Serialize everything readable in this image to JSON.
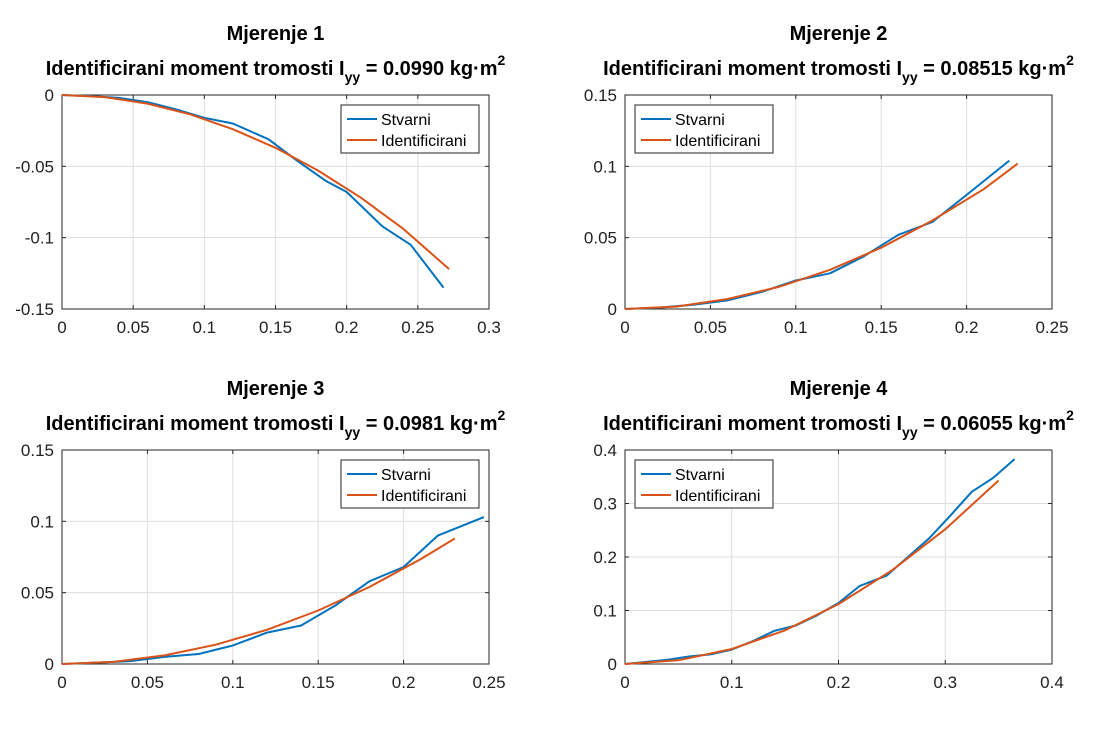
{
  "colors": {
    "series1": "#0072BD",
    "series2": "#D95319"
  },
  "chart_data": [
    {
      "type": "line",
      "title": "Mjerenje 1",
      "subtitle": {
        "prefix": "Identificirani moment tromosti I",
        "subscript": "yy",
        "middle": " = 0.0990 kg·m",
        "superscript": "2"
      },
      "xlim": [
        0,
        0.3
      ],
      "ylim": [
        -0.15,
        0
      ],
      "xticks": [
        0,
        0.05,
        0.1,
        0.15,
        0.2,
        0.25,
        0.3
      ],
      "xtick_labels": [
        "0",
        "0.05",
        "0.1",
        "0.15",
        "0.2",
        "0.25",
        "0.3"
      ],
      "yticks": [
        -0.15,
        -0.1,
        -0.05,
        0
      ],
      "ytick_labels": [
        "-0.15",
        "-0.1",
        "-0.05",
        "0"
      ],
      "grid": true,
      "legend": "top-right",
      "series": [
        {
          "name": "Stvarni",
          "x": [
            0,
            0.02,
            0.04,
            0.06,
            0.08,
            0.1,
            0.12,
            0.145,
            0.165,
            0.185,
            0.2,
            0.225,
            0.245,
            0.268
          ],
          "y": [
            0,
            -0.0008,
            -0.002,
            -0.005,
            -0.01,
            -0.016,
            -0.02,
            -0.031,
            -0.046,
            -0.06,
            -0.068,
            -0.092,
            -0.105,
            -0.135
          ]
        },
        {
          "name": "Identificirani",
          "x": [
            0,
            0.03,
            0.06,
            0.09,
            0.12,
            0.15,
            0.18,
            0.21,
            0.24,
            0.272
          ],
          "y": [
            0,
            -0.0015,
            -0.006,
            -0.0135,
            -0.024,
            -0.037,
            -0.053,
            -0.072,
            -0.094,
            -0.122
          ]
        }
      ]
    },
    {
      "type": "line",
      "title": "Mjerenje 2",
      "subtitle": {
        "prefix": "Identificirani moment tromosti I",
        "subscript": "yy",
        "middle": " = 0.08515 kg·m",
        "superscript": "2"
      },
      "xlim": [
        0,
        0.25
      ],
      "ylim": [
        0,
        0.15
      ],
      "xticks": [
        0,
        0.05,
        0.1,
        0.15,
        0.2,
        0.25
      ],
      "xtick_labels": [
        "0",
        "0.05",
        "0.1",
        "0.15",
        "0.2",
        "0.25"
      ],
      "yticks": [
        0,
        0.05,
        0.1,
        0.15
      ],
      "ytick_labels": [
        "0",
        "0.05",
        "0.1",
        "0.15"
      ],
      "grid": true,
      "legend": "top-left",
      "series": [
        {
          "name": "Stvarni",
          "x": [
            0,
            0.02,
            0.04,
            0.06,
            0.08,
            0.1,
            0.12,
            0.14,
            0.16,
            0.18,
            0.2,
            0.225
          ],
          "y": [
            0,
            0.001,
            0.003,
            0.006,
            0.012,
            0.02,
            0.025,
            0.037,
            0.052,
            0.061,
            0.08,
            0.104
          ]
        },
        {
          "name": "Identificirani",
          "x": [
            0,
            0.03,
            0.06,
            0.09,
            0.12,
            0.15,
            0.18,
            0.21,
            0.23
          ],
          "y": [
            0,
            0.0017,
            0.007,
            0.0155,
            0.0275,
            0.043,
            0.062,
            0.084,
            0.102
          ]
        }
      ]
    },
    {
      "type": "line",
      "title": "Mjerenje 3",
      "subtitle": {
        "prefix": "Identificirani moment tromosti I",
        "subscript": "yy",
        "middle": " = 0.0981 kg·m",
        "superscript": "2"
      },
      "xlim": [
        0,
        0.25
      ],
      "ylim": [
        0,
        0.15
      ],
      "xticks": [
        0,
        0.05,
        0.1,
        0.15,
        0.2,
        0.25
      ],
      "xtick_labels": [
        "0",
        "0.05",
        "0.1",
        "0.15",
        "0.2",
        "0.25"
      ],
      "yticks": [
        0,
        0.05,
        0.1,
        0.15
      ],
      "ytick_labels": [
        "0",
        "0.05",
        "0.1",
        "0.15"
      ],
      "grid": true,
      "legend": "top-right",
      "series": [
        {
          "name": "Stvarni",
          "x": [
            0,
            0.02,
            0.04,
            0.06,
            0.08,
            0.1,
            0.12,
            0.14,
            0.16,
            0.18,
            0.2,
            0.22,
            0.247
          ],
          "y": [
            0,
            0.001,
            0.002,
            0.005,
            0.007,
            0.013,
            0.022,
            0.027,
            0.041,
            0.058,
            0.068,
            0.09,
            0.103
          ]
        },
        {
          "name": "Identificirani",
          "x": [
            0,
            0.03,
            0.06,
            0.09,
            0.12,
            0.15,
            0.18,
            0.21,
            0.23
          ],
          "y": [
            0,
            0.0015,
            0.006,
            0.0135,
            0.024,
            0.0375,
            0.054,
            0.0735,
            0.088
          ]
        }
      ]
    },
    {
      "type": "line",
      "title": "Mjerenje 4",
      "subtitle": {
        "prefix": "Identificirani moment tromosti I",
        "subscript": "yy",
        "middle": " = 0.06055 kg·m",
        "superscript": "2"
      },
      "xlim": [
        0,
        0.4
      ],
      "ylim": [
        0,
        0.4
      ],
      "xticks": [
        0,
        0.1,
        0.2,
        0.3,
        0.4
      ],
      "xtick_labels": [
        "0",
        "0.1",
        "0.2",
        "0.3",
        "0.4"
      ],
      "yticks": [
        0,
        0.1,
        0.2,
        0.3,
        0.4
      ],
      "ytick_labels": [
        "0",
        "0.1",
        "0.2",
        "0.3",
        "0.4"
      ],
      "grid": true,
      "legend": "top-left",
      "series": [
        {
          "name": "Stvarni",
          "x": [
            0,
            0.02,
            0.04,
            0.06,
            0.08,
            0.1,
            0.12,
            0.14,
            0.16,
            0.18,
            0.2,
            0.22,
            0.245,
            0.265,
            0.285,
            0.305,
            0.325,
            0.345,
            0.365
          ],
          "y": [
            0,
            0.004,
            0.008,
            0.014,
            0.018,
            0.027,
            0.043,
            0.062,
            0.072,
            0.091,
            0.114,
            0.146,
            0.165,
            0.2,
            0.235,
            0.278,
            0.322,
            0.348,
            0.383
          ]
        },
        {
          "name": "Identificirani",
          "x": [
            0,
            0.05,
            0.1,
            0.15,
            0.2,
            0.25,
            0.3,
            0.35
          ],
          "y": [
            0,
            0.007,
            0.028,
            0.063,
            0.112,
            0.175,
            0.252,
            0.343
          ]
        }
      ]
    }
  ]
}
